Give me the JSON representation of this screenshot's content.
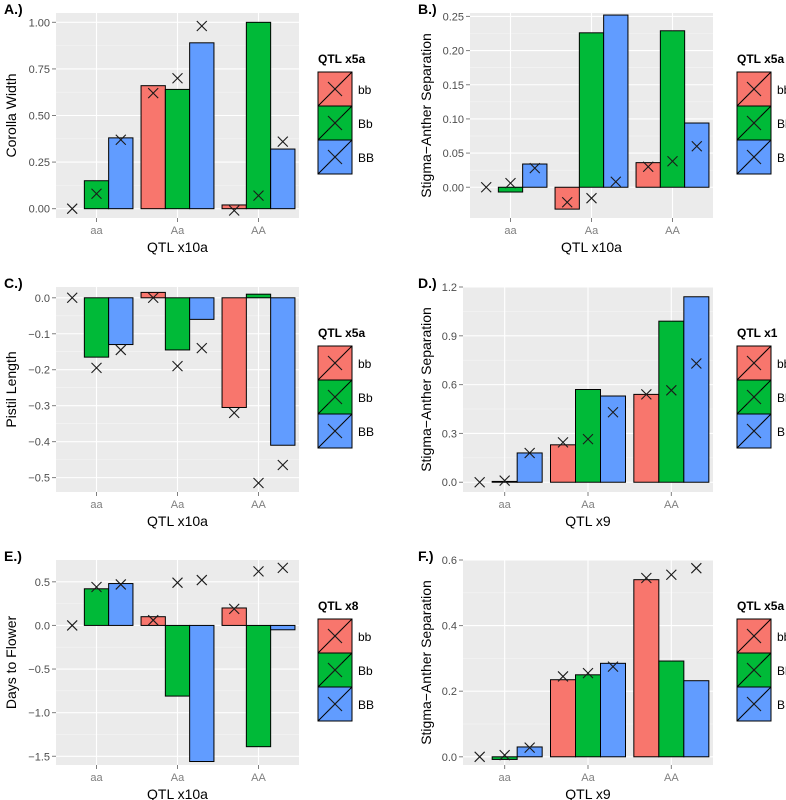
{
  "legend_levels": [
    "bb",
    "Bb",
    "BB"
  ],
  "colors": {
    "bb": "#F8766D",
    "Bb": "#00BA38",
    "BB": "#619CFF",
    "panel_bg": "#EBEBEB",
    "grid": "#FFFFFF",
    "marker": "#1A1A1A"
  },
  "chart_data": [
    {
      "panel_label": "A.)",
      "type": "bar",
      "xlabel": "QTL x10a",
      "ylabel": "Corolla Width",
      "categories": [
        "aa",
        "Aa",
        "AA"
      ],
      "ylim": [
        -0.05,
        1.05
      ],
      "yticks": [
        0.0,
        0.25,
        0.5,
        0.75,
        1.0
      ],
      "ytick_labels": [
        "0.00",
        "0.25",
        "0.50",
        "0.75",
        "1.00"
      ],
      "legend_title": "QTL x5a",
      "series": [
        {
          "name": "bb",
          "values": [
            null,
            0.66,
            0.02
          ],
          "markers": [
            0.0,
            0.62,
            -0.01
          ]
        },
        {
          "name": "Bb",
          "values": [
            0.15,
            0.64,
            1.0
          ],
          "markers": [
            0.08,
            0.7,
            0.07
          ]
        },
        {
          "name": "BB",
          "values": [
            0.38,
            0.89,
            0.32
          ],
          "markers": [
            0.37,
            0.98,
            0.36
          ]
        }
      ]
    },
    {
      "panel_label": "B.)",
      "type": "bar",
      "xlabel": "QTL x10a",
      "ylabel": "Stigma−Anther Separation",
      "categories": [
        "aa",
        "Aa",
        "AA"
      ],
      "ylim": [
        -0.045,
        0.255
      ],
      "yticks": [
        0.0,
        0.05,
        0.1,
        0.15,
        0.2,
        0.25
      ],
      "ytick_labels": [
        "0.00",
        "0.05",
        "0.10",
        "0.15",
        "0.20",
        "0.25"
      ],
      "legend_title": "QTL x5a",
      "series": [
        {
          "name": "bb",
          "values": [
            null,
            -0.032,
            0.036
          ],
          "markers": [
            0.0,
            -0.022,
            0.03
          ]
        },
        {
          "name": "Bb",
          "values": [
            -0.007,
            0.226,
            0.229
          ],
          "markers": [
            0.006,
            -0.016,
            0.038
          ]
        },
        {
          "name": "BB",
          "values": [
            0.034,
            0.252,
            0.094
          ],
          "markers": [
            0.028,
            0.008,
            0.06
          ]
        }
      ]
    },
    {
      "panel_label": "C.)",
      "type": "bar",
      "xlabel": "QTL x10a",
      "ylabel": "Pistil Length",
      "categories": [
        "aa",
        "Aa",
        "AA"
      ],
      "ylim": [
        -0.54,
        0.03
      ],
      "yticks": [
        -0.5,
        -0.4,
        -0.3,
        -0.2,
        -0.1,
        0.0
      ],
      "ytick_labels": [
        "−0.5",
        "−0.4",
        "−0.3",
        "−0.2",
        "−0.1",
        "0.0"
      ],
      "legend_title": "QTL x5a",
      "series": [
        {
          "name": "bb",
          "values": [
            null,
            0.015,
            -0.305
          ],
          "markers": [
            0.0,
            0.0,
            -0.32
          ]
        },
        {
          "name": "Bb",
          "values": [
            -0.165,
            -0.145,
            0.01
          ],
          "markers": [
            -0.195,
            -0.19,
            -0.515
          ]
        },
        {
          "name": "BB",
          "values": [
            -0.13,
            -0.06,
            -0.41
          ],
          "markers": [
            -0.145,
            -0.14,
            -0.465
          ]
        }
      ]
    },
    {
      "panel_label": "D.)",
      "type": "bar",
      "xlabel": "QTL x9",
      "ylabel": "Stigma−Anther Separation",
      "categories": [
        "aa",
        "Aa",
        "AA"
      ],
      "ylim": [
        -0.06,
        1.2
      ],
      "yticks": [
        0.0,
        0.3,
        0.6,
        0.9,
        1.2
      ],
      "ytick_labels": [
        "0.0",
        "0.3",
        "0.6",
        "0.9",
        "1.2"
      ],
      "legend_title": "QTL x1",
      "series": [
        {
          "name": "bb",
          "values": [
            null,
            0.23,
            0.54
          ],
          "markers": [
            0.0,
            0.245,
            0.54
          ]
        },
        {
          "name": "Bb",
          "values": [
            0.005,
            0.57,
            0.99
          ],
          "markers": [
            0.01,
            0.265,
            0.565
          ]
        },
        {
          "name": "BB",
          "values": [
            0.18,
            0.53,
            1.14
          ],
          "markers": [
            0.18,
            0.43,
            0.73
          ]
        }
      ]
    },
    {
      "panel_label": "E.)",
      "type": "bar",
      "xlabel": "QTL x10a",
      "ylabel": "Days to Flower",
      "categories": [
        "aa",
        "Aa",
        "AA"
      ],
      "ylim": [
        -1.6,
        0.75
      ],
      "yticks": [
        -1.5,
        -1.0,
        -0.5,
        0.0,
        0.5
      ],
      "ytick_labels": [
        "−1.5",
        "−1.0",
        "−0.5",
        "0.0",
        "0.5"
      ],
      "legend_title": "QTL x8",
      "series": [
        {
          "name": "bb",
          "values": [
            null,
            0.1,
            0.2
          ],
          "markers": [
            0.0,
            0.06,
            0.19
          ]
        },
        {
          "name": "Bb",
          "values": [
            0.42,
            -0.81,
            -1.39
          ],
          "markers": [
            0.44,
            0.49,
            0.62
          ]
        },
        {
          "name": "BB",
          "values": [
            0.48,
            -1.56,
            -0.05
          ],
          "markers": [
            0.47,
            0.52,
            0.66
          ]
        }
      ]
    },
    {
      "panel_label": "F.)",
      "type": "bar",
      "xlabel": "QTL x9",
      "ylabel": "Stigma−Anther Separation",
      "categories": [
        "aa",
        "Aa",
        "AA"
      ],
      "ylim": [
        -0.025,
        0.6
      ],
      "yticks": [
        0.0,
        0.2,
        0.4,
        0.6
      ],
      "ytick_labels": [
        "0.0",
        "0.2",
        "0.4",
        "0.6"
      ],
      "legend_title": "QTL x5a",
      "series": [
        {
          "name": "bb",
          "values": [
            null,
            0.235,
            0.54
          ],
          "markers": [
            0.0,
            0.245,
            0.545
          ]
        },
        {
          "name": "Bb",
          "values": [
            -0.008,
            0.25,
            0.292
          ],
          "markers": [
            0.005,
            0.255,
            0.555
          ]
        },
        {
          "name": "BB",
          "values": [
            0.03,
            0.285,
            0.232
          ],
          "markers": [
            0.028,
            0.275,
            0.575
          ]
        }
      ]
    }
  ]
}
